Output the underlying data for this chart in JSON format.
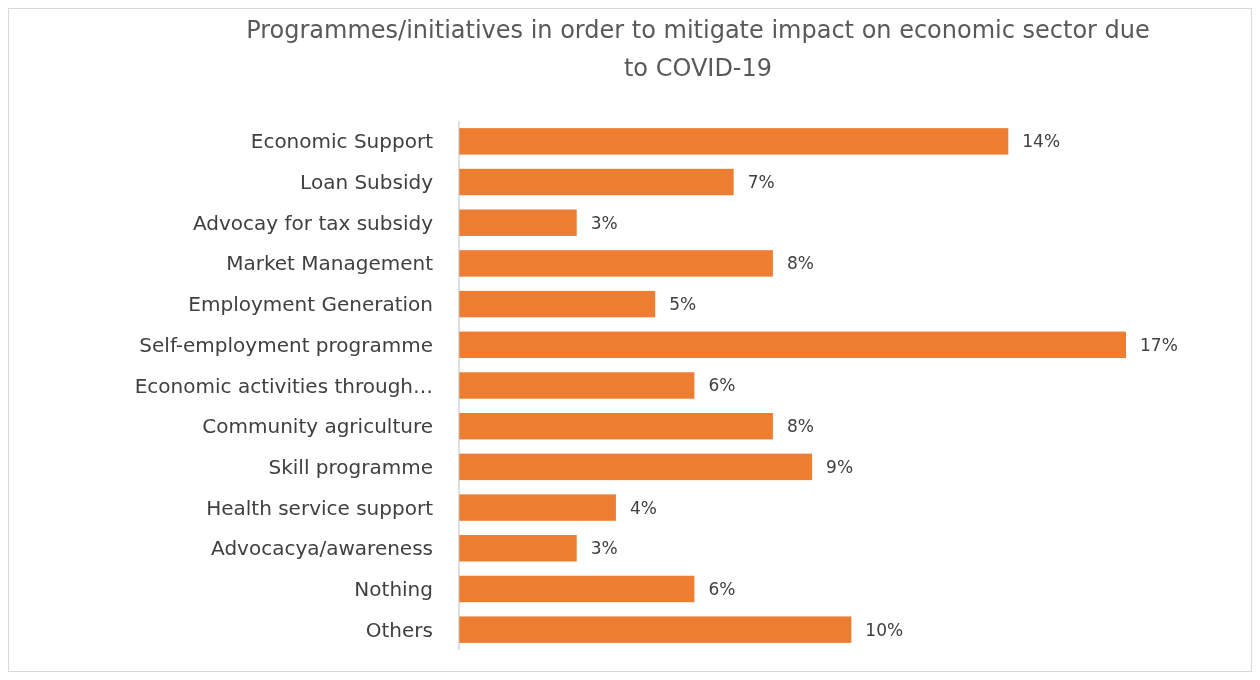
{
  "chart_data": {
    "type": "bar",
    "orientation": "horizontal",
    "title": "Programmes/initiatives in order to mitigate impact on economic sector due to COVID-19",
    "categories": [
      "Economic Support",
      "Loan Subsidy",
      "Advocay for tax subsidy",
      "Market Management",
      "Employment Generation",
      "Self-employment programme",
      "Economic activities through…",
      "Community agriculture",
      "Skill programme",
      "Health service support",
      "Advocacya/awareness",
      "Nothing",
      "Others"
    ],
    "values": [
      14,
      7,
      3,
      8,
      5,
      17,
      6,
      8,
      9,
      4,
      3,
      6,
      10
    ],
    "value_labels": [
      "14%",
      "7%",
      "3%",
      "8%",
      "5%",
      "17%",
      "6%",
      "8%",
      "9%",
      "4%",
      "3%",
      "6%",
      "10%"
    ],
    "color": "#ed7d31"
  }
}
